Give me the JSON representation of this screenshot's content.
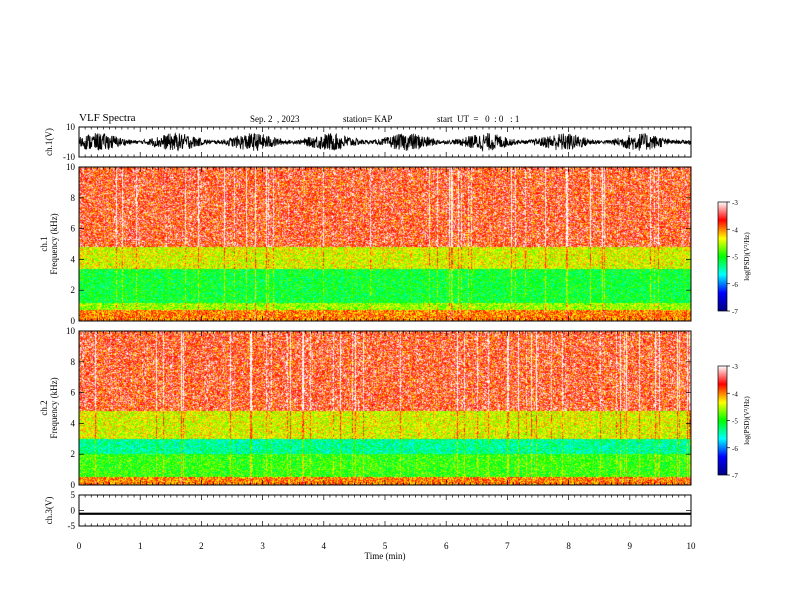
{
  "header": {
    "title": "VLF Spectra",
    "date": "Sep. 2  , 2023",
    "station": "station= KAP",
    "start": "start  UT  =   0  : 0   : 1"
  },
  "chart_data": [
    {
      "type": "line",
      "ylabel": "ch.1(V)",
      "ylim": [
        -10,
        10
      ],
      "yticks": [
        "10",
        "-10"
      ],
      "xlim": [
        0,
        10
      ],
      "note": "noisy broadband waveform, mostly within -5..5 V"
    },
    {
      "type": "heatmap",
      "ylabel": "ch.1\nFrequency  (kHz)",
      "ylim": [
        0,
        10
      ],
      "yticks": [
        "0",
        "2",
        "4",
        "6",
        "8",
        "10"
      ],
      "xlim": [
        0,
        10
      ],
      "colorbar": {
        "label": "log(PSD)(V²/Hz)",
        "range": [
          -7,
          -3
        ],
        "ticks": [
          "-3",
          "-4",
          "-5",
          "-6",
          "-7"
        ]
      },
      "bands_khz": [
        {
          "from": 0,
          "to": 0.7,
          "level": -4.0
        },
        {
          "from": 0.7,
          "to": 1.2,
          "level": -4.6
        },
        {
          "from": 1.2,
          "to": 3.4,
          "level": -5.1
        },
        {
          "from": 3.4,
          "to": 4.8,
          "level": -4.4
        },
        {
          "from": 4.8,
          "to": 10,
          "level": -3.6
        }
      ]
    },
    {
      "type": "heatmap",
      "ylabel": "ch.2\nFrequency  (kHz)",
      "ylim": [
        0,
        10
      ],
      "yticks": [
        "0",
        "2",
        "4",
        "6",
        "8",
        "10"
      ],
      "xlim": [
        0,
        10
      ],
      "colorbar": {
        "label": "log(PSD)(V²/Hz)",
        "range": [
          -7,
          -3
        ],
        "ticks": [
          "-3",
          "-4",
          "-5",
          "-6",
          "-7"
        ]
      },
      "bands_khz": [
        {
          "from": 0,
          "to": 0.5,
          "level": -4.0
        },
        {
          "from": 0.5,
          "to": 2.0,
          "level": -4.9
        },
        {
          "from": 2.0,
          "to": 3.0,
          "level": -5.4
        },
        {
          "from": 3.0,
          "to": 4.8,
          "level": -4.4
        },
        {
          "from": 4.8,
          "to": 10,
          "level": -3.6
        }
      ]
    },
    {
      "type": "line",
      "ylabel": "ch.3(V)",
      "ylim": [
        -5,
        5
      ],
      "yticks": [
        "5",
        "0",
        "-5"
      ],
      "xlim": [
        0,
        10
      ],
      "xticks": [
        "0",
        "1",
        "2",
        "3",
        "4",
        "5",
        "6",
        "7",
        "8",
        "9",
        "10"
      ],
      "xlabel": "Time  (min)",
      "note": "flat near -1 V, small amplitude"
    }
  ],
  "colors": {
    "axis": "#000000",
    "wave": "#000000",
    "colormap": [
      "#000080",
      "#0000ff",
      "#00ffff",
      "#00ff00",
      "#ffff00",
      "#ff0000",
      "#ffffff"
    ]
  }
}
